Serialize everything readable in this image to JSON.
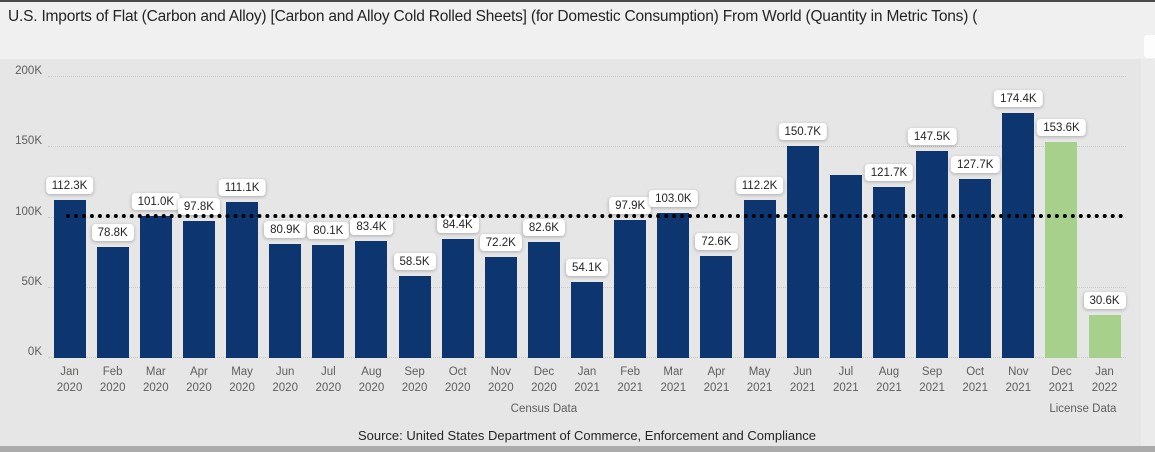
{
  "title": "U.S. Imports of Flat (Carbon and Alloy) [Carbon and Alloy Cold Rolled Sheets]  (for Domestic Consumption) From World  (Quantity in Metric Tons) (",
  "source_line": "Source: United States Department of Commerce, Enforcement and Compliance",
  "colors": {
    "census_bar": "#0d3671",
    "license_bar": "#a6d08b",
    "reference_line": "#000000",
    "panel_background": "#e6e6e6",
    "page_background": "#f0f0f0",
    "axis_text": "#605e5c",
    "title_text": "#252423"
  },
  "chart_data": {
    "type": "bar",
    "title": "U.S. Imports of Flat (Carbon and Alloy) [Carbon and Alloy Cold Rolled Sheets] (for Domestic Consumption) From World (Quantity in Metric Tons)",
    "xlabel": "",
    "ylabel": "Quantity in Metric Tons",
    "ylim_k": [
      0,
      200
    ],
    "y_ticks": [
      "0K",
      "50K",
      "100K",
      "150K",
      "200K"
    ],
    "grid": "horizontal-dotted",
    "legend_position": "none",
    "categories": [
      {
        "month": "Jan",
        "year": "2020"
      },
      {
        "month": "Feb",
        "year": "2020"
      },
      {
        "month": "Mar",
        "year": "2020"
      },
      {
        "month": "Apr",
        "year": "2020"
      },
      {
        "month": "May",
        "year": "2020"
      },
      {
        "month": "Jun",
        "year": "2020"
      },
      {
        "month": "Jul",
        "year": "2020"
      },
      {
        "month": "Aug",
        "year": "2020"
      },
      {
        "month": "Sep",
        "year": "2020"
      },
      {
        "month": "Oct",
        "year": "2020"
      },
      {
        "month": "Nov",
        "year": "2020"
      },
      {
        "month": "Dec",
        "year": "2020"
      },
      {
        "month": "Jan",
        "year": "2021"
      },
      {
        "month": "Feb",
        "year": "2021"
      },
      {
        "month": "Mar",
        "year": "2021"
      },
      {
        "month": "Apr",
        "year": "2021"
      },
      {
        "month": "May",
        "year": "2021"
      },
      {
        "month": "Jun",
        "year": "2021"
      },
      {
        "month": "Jul",
        "year": "2021"
      },
      {
        "month": "Aug",
        "year": "2021"
      },
      {
        "month": "Sep",
        "year": "2021"
      },
      {
        "month": "Oct",
        "year": "2021"
      },
      {
        "month": "Nov",
        "year": "2021"
      },
      {
        "month": "Dec",
        "year": "2021"
      },
      {
        "month": "Jan",
        "year": "2022"
      }
    ],
    "values_k": [
      112.3,
      78.8,
      101.0,
      97.8,
      111.1,
      80.9,
      80.1,
      83.4,
      58.5,
      84.4,
      72.2,
      82.6,
      54.1,
      97.9,
      103.0,
      72.6,
      112.2,
      150.7,
      130.6,
      121.7,
      147.5,
      127.7,
      174.4,
      153.6,
      30.6
    ],
    "data_labels": [
      "112.3K",
      "78.8K",
      "101.0K",
      "97.8K",
      "111.1K",
      "80.9K",
      "80.1K",
      "83.4K",
      "58.5K",
      "84.4K",
      "72.2K",
      "82.6K",
      "54.1K",
      "97.9K",
      "103.0K",
      "72.6K",
      "112.2K",
      "150.7K",
      null,
      "121.7K",
      "147.5K",
      "127.7K",
      "174.4K",
      "153.6K",
      "30.6K"
    ],
    "groups": [
      {
        "label": "Census Data",
        "from": 0,
        "to": 22,
        "bar_color": "#0d3671"
      },
      {
        "label": "License Data",
        "from": 23,
        "to": 24,
        "bar_color": "#a6d08b"
      }
    ],
    "reference_line": {
      "value_k": 100.8,
      "style": "dotted",
      "color": "#000000"
    }
  }
}
